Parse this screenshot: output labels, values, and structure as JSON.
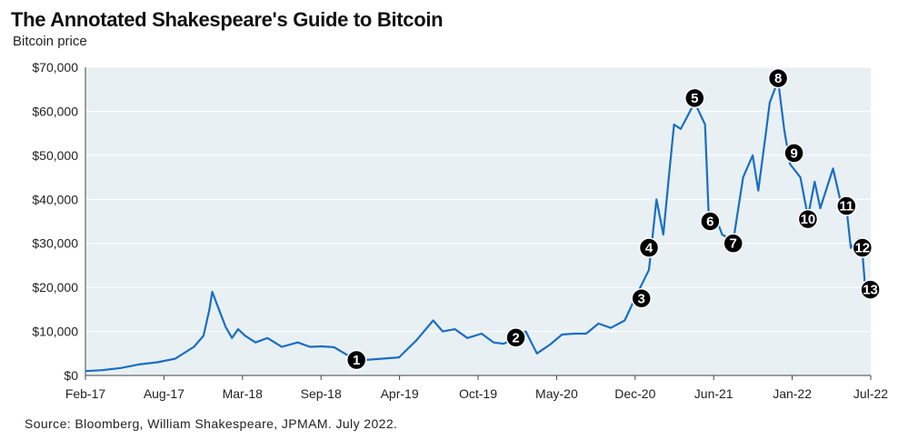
{
  "title": "The Annotated Shakespeare's Guide to Bitcoin",
  "subtitle": "Bitcoin price",
  "source": "Source: Bloomberg, William Shakespeare, JPMAM. July 2022.",
  "colors": {
    "line": "#1a6ec2",
    "plot_bg": "#e8f0f4",
    "grid": "#ffffff",
    "marker": "#000000",
    "marker_text": "#ffffff"
  },
  "chart_data": {
    "type": "line",
    "title": "The Annotated Shakespeare's Guide to Bitcoin",
    "ylabel": "Bitcoin price",
    "xlabel": "",
    "ylim": [
      0,
      70000
    ],
    "yticks": [
      "$0",
      "$10,000",
      "$20,000",
      "$30,000",
      "$40,000",
      "$50,000",
      "$60,000",
      "$70,000"
    ],
    "xticks": [
      "Feb-17",
      "Aug-17",
      "Mar-18",
      "Sep-18",
      "Apr-19",
      "Oct-19",
      "May-20",
      "Dec-20",
      "Jun-21",
      "Jan-22",
      "Jul-22"
    ],
    "grid": true,
    "series": [
      {
        "x": [
          "2017-02-01",
          "2017-03-15",
          "2017-05-01",
          "2017-06-15",
          "2017-08-01",
          "2017-09-15",
          "2017-11-01",
          "2017-11-25",
          "2017-12-10",
          "2017-12-17",
          "2018-01-05",
          "2018-01-20",
          "2018-02-05",
          "2018-02-20",
          "2018-03-10",
          "2018-04-05",
          "2018-05-05",
          "2018-06-10",
          "2018-07-20",
          "2018-08-20",
          "2018-09-20",
          "2018-10-20",
          "2018-11-15",
          "2018-12-15",
          "2019-01-15",
          "2019-02-15",
          "2019-04-01",
          "2019-05-15",
          "2019-06-26",
          "2019-07-20",
          "2019-08-20",
          "2019-09-20",
          "2019-10-26",
          "2019-11-25",
          "2019-12-20",
          "2020-01-20",
          "2020-02-14",
          "2020-03-13",
          "2020-04-15",
          "2020-05-15",
          "2020-06-15",
          "2020-07-15",
          "2020-08-15",
          "2020-09-15",
          "2020-10-20",
          "2020-11-20",
          "2020-12-20",
          "2021-01-08",
          "2021-01-25",
          "2021-02-10",
          "2021-02-21",
          "2021-03-10",
          "2021-04-14",
          "2021-05-10",
          "2021-05-19",
          "2021-06-10",
          "2021-06-22",
          "2021-07-20",
          "2021-08-14",
          "2021-09-07",
          "2021-09-21",
          "2021-10-10",
          "2021-10-20",
          "2021-11-10",
          "2021-11-25",
          "2021-12-10",
          "2022-01-05",
          "2022-01-24",
          "2022-02-10",
          "2022-02-24",
          "2022-03-28",
          "2022-04-15",
          "2022-05-01",
          "2022-05-12",
          "2022-05-31",
          "2022-06-10",
          "2022-06-18",
          "2022-06-30"
        ],
        "values": [
          1000,
          1200,
          1700,
          2500,
          3000,
          3800,
          6500,
          9000,
          15000,
          19000,
          14500,
          11000,
          8500,
          10500,
          9000,
          7500,
          8500,
          6500,
          7500,
          6500,
          6600,
          6400,
          5000,
          3500,
          3600,
          3800,
          4100,
          8000,
          12500,
          10000,
          10500,
          8500,
          9500,
          7500,
          7200,
          8500,
          10000,
          5000,
          7000,
          9300,
          9500,
          9500,
          11800,
          10800,
          12500,
          18500,
          24000,
          40000,
          32000,
          47000,
          57000,
          56000,
          62000,
          57000,
          37000,
          35000,
          32000,
          30500,
          45000,
          50000,
          42000,
          55000,
          62000,
          67000,
          56000,
          48000,
          45000,
          36000,
          44000,
          38000,
          47000,
          40000,
          38000,
          29000,
          31000,
          28000,
          19000,
          19500
        ]
      }
    ],
    "annotations": [
      {
        "label": "1",
        "x": "2018-12-15",
        "y": 3500
      },
      {
        "label": "2",
        "x": "2020-01-20",
        "y": 8600
      },
      {
        "label": "3",
        "x": "2020-12-01",
        "y": 17500
      },
      {
        "label": "4",
        "x": "2020-12-20",
        "y": 29000
      },
      {
        "label": "5",
        "x": "2021-04-14",
        "y": 63000
      },
      {
        "label": "6",
        "x": "2021-05-23",
        "y": 35000
      },
      {
        "label": "7",
        "x": "2021-07-20",
        "y": 30000
      },
      {
        "label": "8",
        "x": "2021-11-10",
        "y": 67500
      },
      {
        "label": "9",
        "x": "2021-12-20",
        "y": 50500
      },
      {
        "label": "10",
        "x": "2022-01-24",
        "y": 35500
      },
      {
        "label": "11",
        "x": "2022-05-01",
        "y": 38500
      },
      {
        "label": "12",
        "x": "2022-06-10",
        "y": 29000
      },
      {
        "label": "13",
        "x": "2022-06-30",
        "y": 19500
      }
    ]
  }
}
